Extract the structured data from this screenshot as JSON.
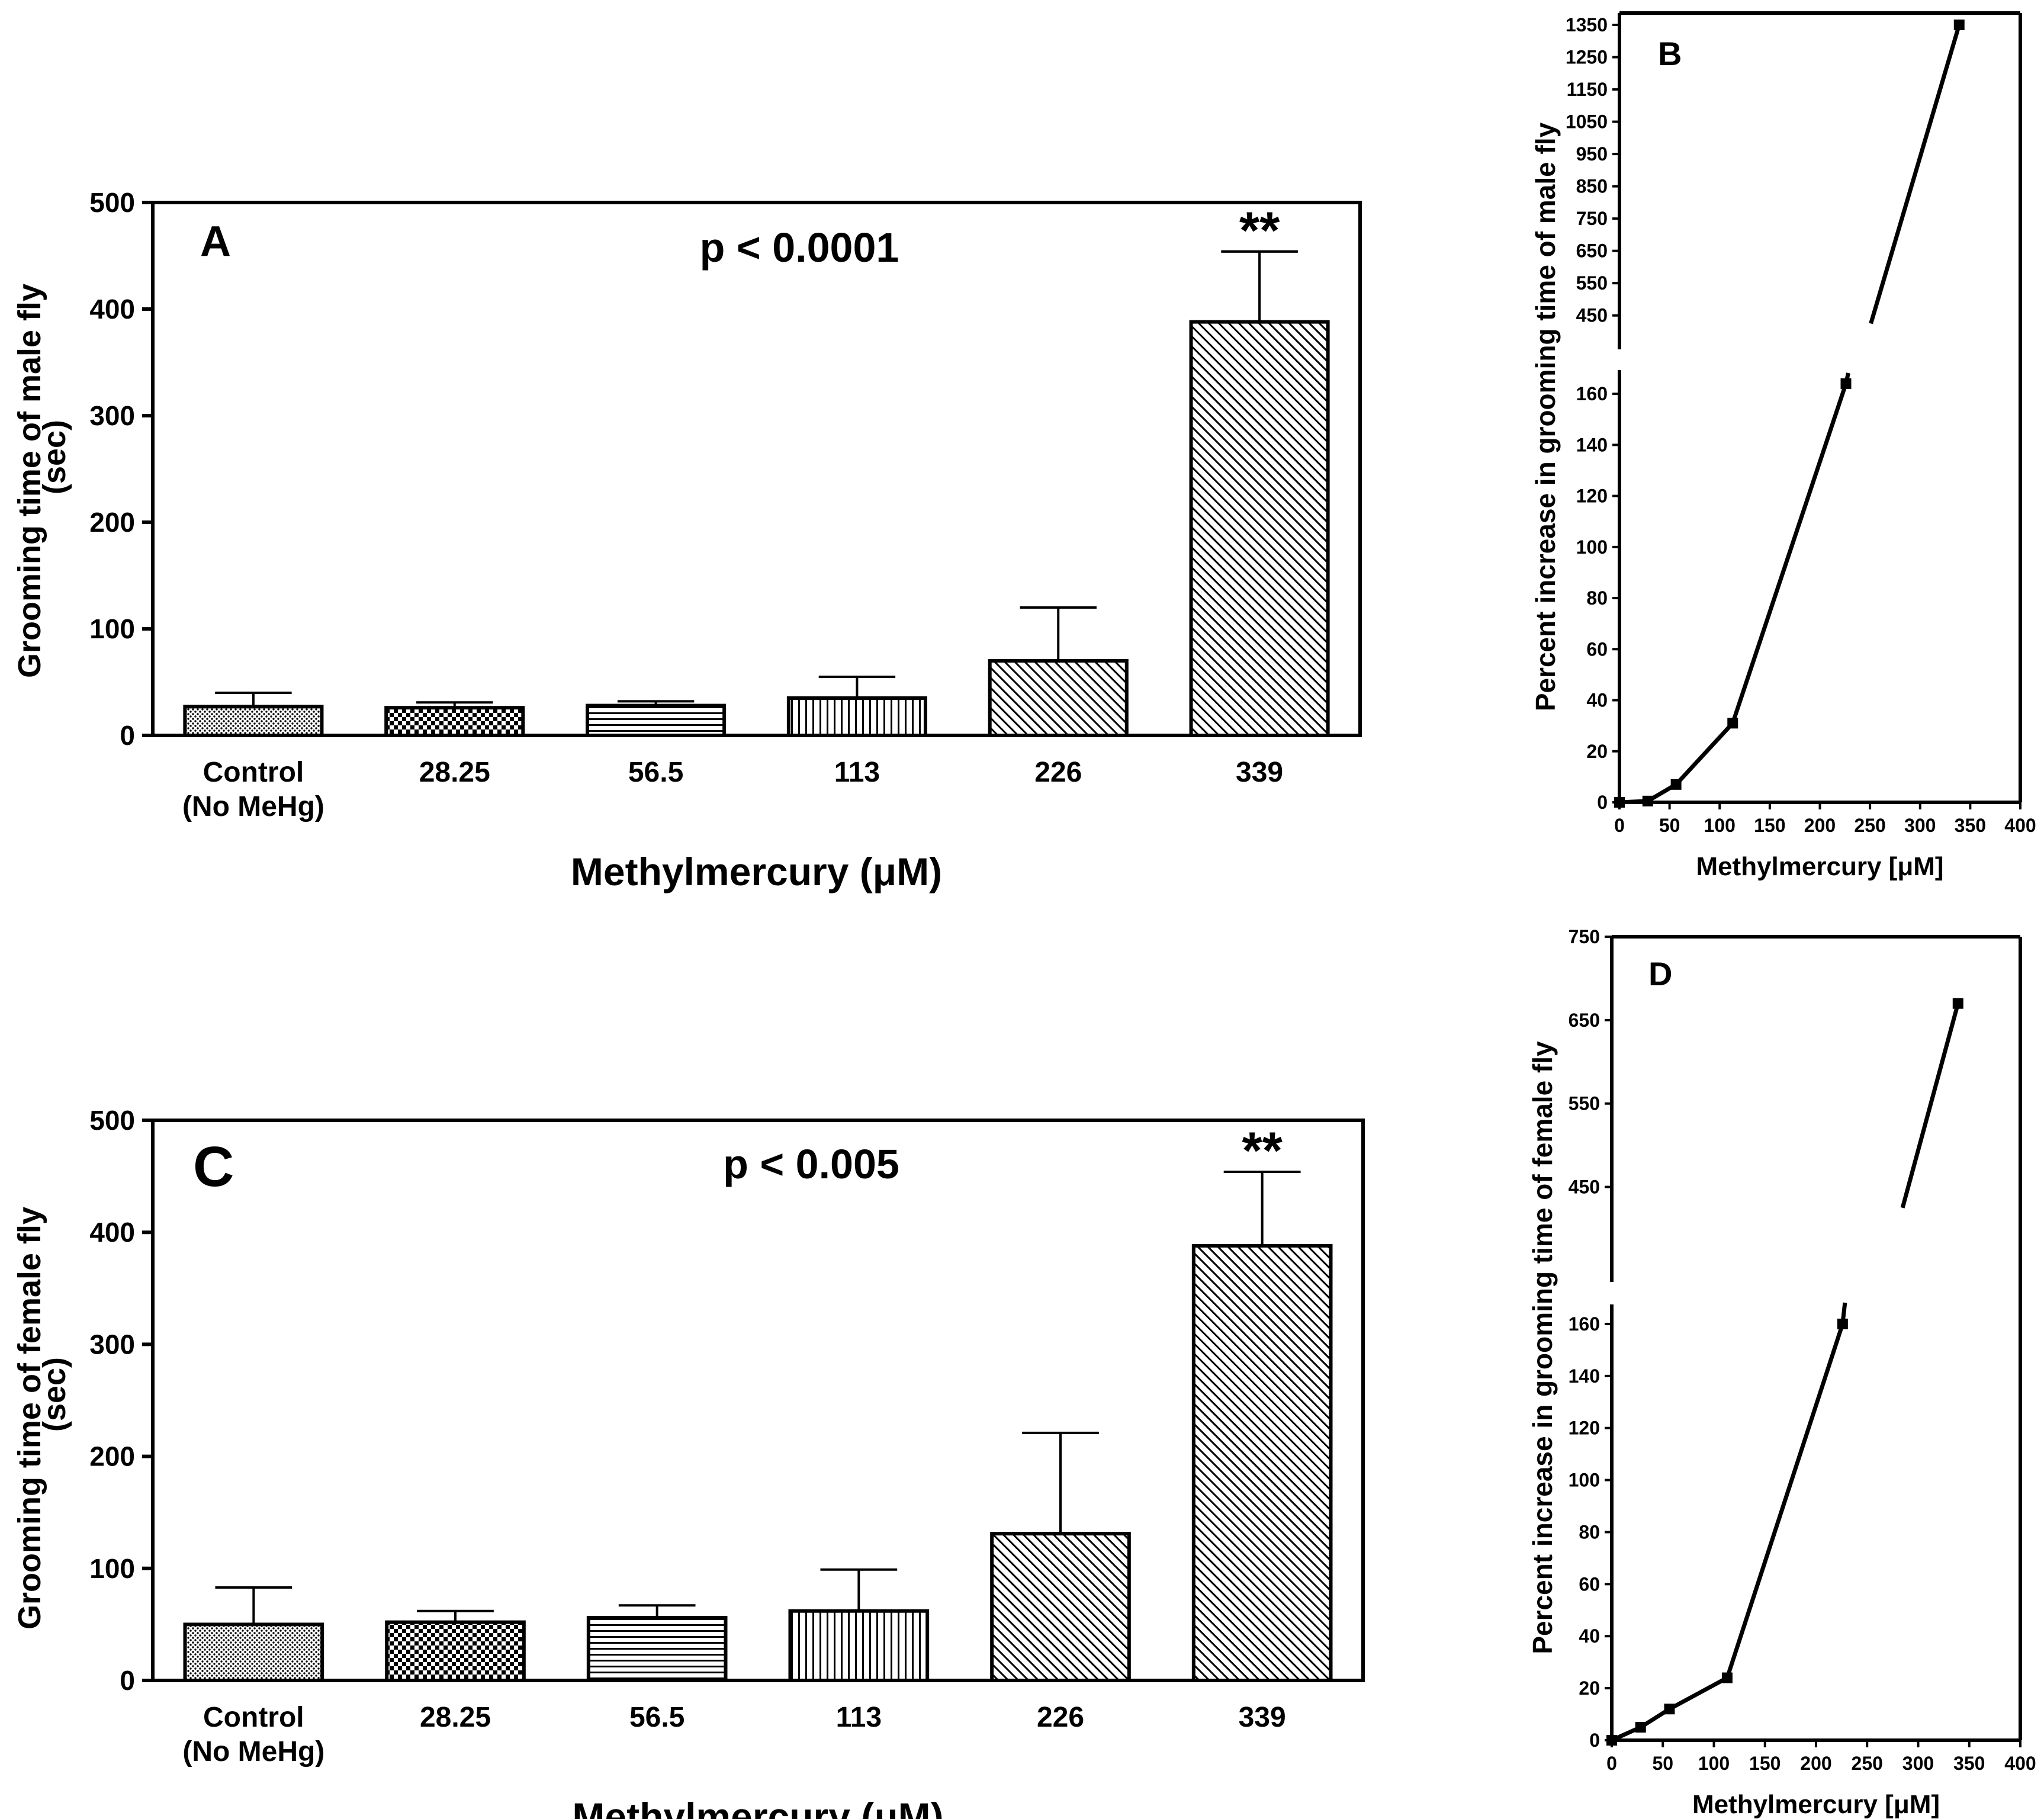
{
  "chart_data": [
    {
      "id": "A",
      "type": "bar",
      "panel_letter": "A",
      "annotation": "p < 0.0001",
      "significance_label": "**",
      "significance_category": "339",
      "ylabel_lines": [
        "Grooming time of male fly",
        "(sec)"
      ],
      "xlabel": "Methylmercury (μM)",
      "categories": [
        [
          "Control",
          "(No MeHg)"
        ],
        [
          "28.25"
        ],
        [
          "56.5"
        ],
        [
          "113"
        ],
        [
          "226"
        ],
        [
          "339"
        ]
      ],
      "values": [
        27,
        26,
        28,
        35,
        70,
        388
      ],
      "errors": [
        13,
        5,
        4,
        20,
        50,
        66
      ],
      "patterns": [
        "dots",
        "checker",
        "hlines",
        "vlines",
        "diag",
        "diag"
      ],
      "ylim": [
        0,
        500
      ],
      "yticks": [
        "0",
        "100",
        "200",
        "300",
        "400",
        "500"
      ]
    },
    {
      "id": "B",
      "type": "line",
      "panel_letter": "B",
      "ylabel": "Percent increase in grooming time of male fly",
      "xlabel": "Methylmercury [μM]",
      "x": [
        0,
        28.25,
        56.5,
        113,
        226,
        339
      ],
      "y": [
        0,
        0.5,
        7,
        31,
        164,
        1350
      ],
      "xlim": [
        0,
        400
      ],
      "xticks": [
        "0",
        "50",
        "100",
        "150",
        "200",
        "250",
        "300",
        "350",
        "400"
      ],
      "lower_ylim": [
        0,
        170
      ],
      "lower_yticks": [
        "0",
        "20",
        "40",
        "60",
        "80",
        "100",
        "120",
        "140",
        "160"
      ],
      "upper_ylim": [
        400,
        1375
      ],
      "upper_yticks": [
        "450",
        "550",
        "650",
        "750",
        "850",
        "950",
        "1050",
        "1150",
        "1250",
        "1350"
      ]
    },
    {
      "id": "C",
      "type": "bar",
      "panel_letter": "C",
      "annotation": "p < 0.005",
      "significance_label": "**",
      "significance_category": "339",
      "ylabel_lines": [
        "Grooming time of female fly",
        "(sec)"
      ],
      "xlabel": "Methylmercury (μM)",
      "categories": [
        [
          "Control",
          "(No MeHg)"
        ],
        [
          "28.25"
        ],
        [
          "56.5"
        ],
        [
          "113"
        ],
        [
          "226"
        ],
        [
          "339"
        ]
      ],
      "values": [
        50,
        52,
        56,
        62,
        131,
        388
      ],
      "errors": [
        33,
        10,
        11,
        37,
        90,
        66
      ],
      "patterns": [
        "dots",
        "checker",
        "hlines",
        "vlines",
        "diag",
        "diag"
      ],
      "ylim": [
        0,
        500
      ],
      "yticks": [
        "0",
        "100",
        "200",
        "300",
        "400",
        "500"
      ]
    },
    {
      "id": "D",
      "type": "line",
      "panel_letter": "D",
      "ylabel": "Percent increase in grooming time of female fly",
      "xlabel": "Methylmercury [μM]",
      "x": [
        0,
        28.25,
        56.5,
        113,
        226,
        339
      ],
      "y": [
        0,
        5,
        12,
        24,
        160,
        670
      ],
      "xlim": [
        0,
        400
      ],
      "xticks": [
        "0",
        "50",
        "100",
        "150",
        "200",
        "250",
        "300",
        "350",
        "400"
      ],
      "lower_ylim": [
        0,
        170
      ],
      "lower_yticks": [
        "0",
        "20",
        "40",
        "60",
        "80",
        "100",
        "120",
        "140",
        "160"
      ],
      "upper_ylim": [
        400,
        750
      ],
      "upper_yticks": [
        "450",
        "550",
        "650",
        "750"
      ]
    }
  ]
}
